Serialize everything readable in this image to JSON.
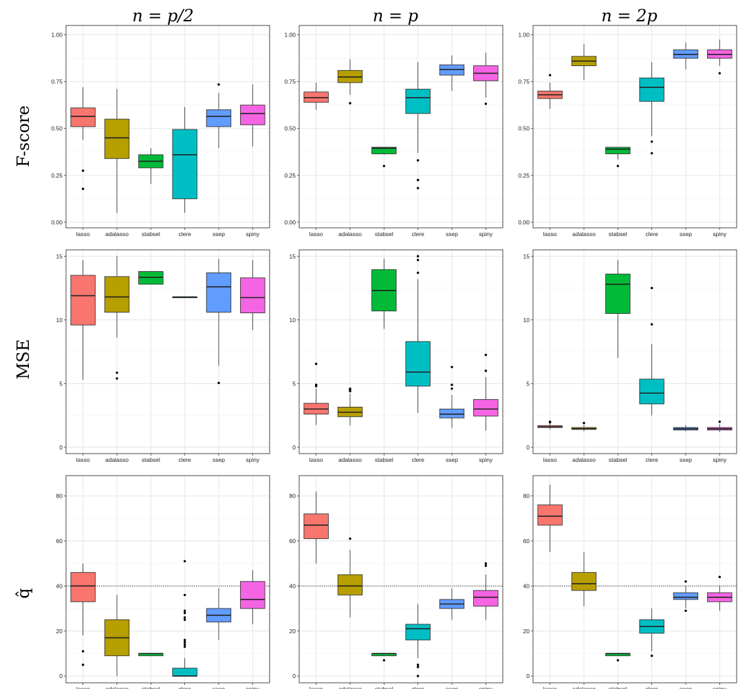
{
  "figure": {
    "col_titles": [
      "n = p/2",
      "n = p",
      "n = 2p"
    ],
    "row_titles": [
      "F-score",
      "MSE",
      "q̂"
    ]
  },
  "chart_data": [
    {
      "type": "box",
      "row_label": "F-score",
      "col_label": "n = p/2",
      "categories": [
        "lasso",
        "adalasso",
        "stabsel",
        "clere",
        "ssep",
        "spiny"
      ],
      "colors": [
        "#F8766D",
        "#B79F00",
        "#00BA38",
        "#00BFC4",
        "#619CFF",
        "#F564E3"
      ],
      "ylim": [
        -0.03,
        1.05
      ],
      "yticks": [
        0.0,
        0.25,
        0.5,
        0.75,
        1.0
      ],
      "ytick_labels": [
        "0.00",
        "0.25",
        "0.50",
        "0.75",
        "1.00"
      ],
      "boxes": [
        {
          "min": 0.44,
          "q1": 0.51,
          "median": 0.565,
          "q3": 0.61,
          "max": 0.72,
          "outliers": [
            0.275,
            0.178
          ]
        },
        {
          "min": 0.05,
          "q1": 0.34,
          "median": 0.45,
          "q3": 0.55,
          "max": 0.71,
          "outliers": []
        },
        {
          "min": 0.205,
          "q1": 0.29,
          "median": 0.325,
          "q3": 0.36,
          "max": 0.395,
          "outliers": []
        },
        {
          "min": 0.05,
          "q1": 0.125,
          "median": 0.36,
          "q3": 0.495,
          "max": 0.615,
          "outliers": []
        },
        {
          "min": 0.395,
          "q1": 0.51,
          "median": 0.565,
          "q3": 0.6,
          "max": 0.69,
          "outliers": [
            0.735
          ]
        },
        {
          "min": 0.405,
          "q1": 0.52,
          "median": 0.58,
          "q3": 0.625,
          "max": 0.735,
          "outliers": []
        }
      ]
    },
    {
      "type": "box",
      "row_label": "F-score",
      "col_label": "n = p",
      "categories": [
        "lasso",
        "adalasso",
        "stabsel",
        "clere",
        "ssep",
        "spiny"
      ],
      "colors": [
        "#F8766D",
        "#B79F00",
        "#00BA38",
        "#00BFC4",
        "#619CFF",
        "#F564E3"
      ],
      "ylim": [
        -0.03,
        1.05
      ],
      "yticks": [
        0.0,
        0.25,
        0.5,
        0.75,
        1.0
      ],
      "ytick_labels": [
        "0.00",
        "0.25",
        "0.50",
        "0.75",
        "1.00"
      ],
      "boxes": [
        {
          "min": 0.6,
          "q1": 0.64,
          "median": 0.665,
          "q3": 0.695,
          "max": 0.745,
          "outliers": []
        },
        {
          "min": 0.68,
          "q1": 0.745,
          "median": 0.775,
          "q3": 0.81,
          "max": 0.87,
          "outliers": [
            0.635
          ]
        },
        {
          "min": 0.36,
          "q1": 0.365,
          "median": 0.395,
          "q3": 0.4,
          "max": 0.4,
          "outliers": [
            0.3
          ]
        },
        {
          "min": 0.37,
          "q1": 0.58,
          "median": 0.665,
          "q3": 0.71,
          "max": 0.855,
          "outliers": [
            0.33,
            0.225,
            0.182
          ]
        },
        {
          "min": 0.7,
          "q1": 0.785,
          "median": 0.815,
          "q3": 0.84,
          "max": 0.89,
          "outliers": []
        },
        {
          "min": 0.665,
          "q1": 0.755,
          "median": 0.795,
          "q3": 0.835,
          "max": 0.905,
          "outliers": [
            0.632
          ]
        }
      ]
    },
    {
      "type": "box",
      "row_label": "F-score",
      "col_label": "n = 2p",
      "categories": [
        "lasso",
        "adalasso",
        "stabsel",
        "clere",
        "ssep",
        "spiny"
      ],
      "colors": [
        "#F8766D",
        "#B79F00",
        "#00BA38",
        "#00BFC4",
        "#619CFF",
        "#F564E3"
      ],
      "ylim": [
        -0.03,
        1.05
      ],
      "yticks": [
        0.0,
        0.25,
        0.5,
        0.75,
        1.0
      ],
      "ytick_labels": [
        "0.00",
        "0.25",
        "0.50",
        "0.75",
        "1.00"
      ],
      "boxes": [
        {
          "min": 0.605,
          "q1": 0.66,
          "median": 0.68,
          "q3": 0.7,
          "max": 0.745,
          "outliers": [
            0.785
          ]
        },
        {
          "min": 0.76,
          "q1": 0.835,
          "median": 0.86,
          "q3": 0.885,
          "max": 0.95,
          "outliers": []
        },
        {
          "min": 0.335,
          "q1": 0.365,
          "median": 0.39,
          "q3": 0.4,
          "max": 0.4,
          "outliers": [
            0.3
          ]
        },
        {
          "min": 0.46,
          "q1": 0.645,
          "median": 0.72,
          "q3": 0.77,
          "max": 0.855,
          "outliers": [
            0.43,
            0.368
          ]
        },
        {
          "min": 0.815,
          "q1": 0.875,
          "median": 0.895,
          "q3": 0.92,
          "max": 0.96,
          "outliers": []
        },
        {
          "min": 0.835,
          "q1": 0.875,
          "median": 0.895,
          "q3": 0.92,
          "max": 0.975,
          "outliers": [
            0.795
          ]
        }
      ]
    },
    {
      "type": "box",
      "row_label": "MSE",
      "col_label": "n = p/2",
      "categories": [
        "lasso",
        "adalasso",
        "stabsel",
        "clere",
        "ssep",
        "spiny"
      ],
      "colors": [
        "#F8766D",
        "#B79F00",
        "#00BA38",
        "#00BFC4",
        "#619CFF",
        "#F564E3"
      ],
      "ylim": [
        -0.5,
        15.5
      ],
      "yticks": [
        0,
        5,
        10,
        15
      ],
      "ytick_labels": [
        "0",
        "5",
        "10",
        "15"
      ],
      "boxes": [
        {
          "min": 5.3,
          "q1": 9.6,
          "median": 11.9,
          "q3": 13.5,
          "max": 14.7,
          "outliers": []
        },
        {
          "min": 8.6,
          "q1": 10.6,
          "median": 11.8,
          "q3": 13.4,
          "max": 15.0,
          "outliers": [
            5.85,
            5.4
          ]
        },
        {
          "min": 12.8,
          "q1": 12.8,
          "median": 13.35,
          "q3": 13.8,
          "max": 13.8,
          "outliers": []
        },
        {
          "min": 11.8,
          "q1": 11.8,
          "median": 11.8,
          "q3": 11.8,
          "max": 11.8,
          "outliers": []
        },
        {
          "min": 6.4,
          "q1": 10.6,
          "median": 12.6,
          "q3": 13.7,
          "max": 14.8,
          "outliers": [
            5.05
          ]
        },
        {
          "min": 9.2,
          "q1": 10.55,
          "median": 11.75,
          "q3": 13.3,
          "max": 14.7,
          "outliers": []
        }
      ]
    },
    {
      "type": "box",
      "row_label": "MSE",
      "col_label": "n = p",
      "categories": [
        "lasso",
        "adalasso",
        "stabsel",
        "clere",
        "ssep",
        "spiny"
      ],
      "colors": [
        "#F8766D",
        "#B79F00",
        "#00BA38",
        "#00BFC4",
        "#619CFF",
        "#F564E3"
      ],
      "ylim": [
        -0.5,
        15.5
      ],
      "yticks": [
        0,
        5,
        10,
        15
      ],
      "ytick_labels": [
        "0",
        "5",
        "10",
        "15"
      ],
      "boxes": [
        {
          "min": 1.75,
          "q1": 2.6,
          "median": 3.0,
          "q3": 3.45,
          "max": 4.6,
          "outliers": [
            6.55,
            4.9,
            4.8
          ]
        },
        {
          "min": 1.7,
          "q1": 2.4,
          "median": 2.75,
          "q3": 3.15,
          "max": 4.2,
          "outliers": [
            4.6,
            4.5,
            4.4
          ]
        },
        {
          "min": 9.3,
          "q1": 10.7,
          "median": 12.3,
          "q3": 13.95,
          "max": 14.8,
          "outliers": []
        },
        {
          "min": 2.7,
          "q1": 4.8,
          "median": 5.9,
          "q3": 8.3,
          "max": 13.2,
          "outliers": [
            15.0,
            14.7,
            13.7
          ]
        },
        {
          "min": 1.5,
          "q1": 2.3,
          "median": 2.6,
          "q3": 3.0,
          "max": 4.1,
          "outliers": [
            6.3,
            4.9,
            4.6
          ]
        },
        {
          "min": 1.3,
          "q1": 2.45,
          "median": 3.0,
          "q3": 3.75,
          "max": 5.5,
          "outliers": [
            7.25,
            6.0
          ]
        }
      ]
    },
    {
      "type": "box",
      "row_label": "MSE",
      "col_label": "n = 2p",
      "categories": [
        "lasso",
        "adalasso",
        "stabsel",
        "clere",
        "ssep",
        "spiny"
      ],
      "colors": [
        "#F8766D",
        "#B79F00",
        "#00BA38",
        "#00BFC4",
        "#619CFF",
        "#F564E3"
      ],
      "ylim": [
        -0.5,
        15.5
      ],
      "yticks": [
        0,
        5,
        10,
        15
      ],
      "ytick_labels": [
        "0",
        "5",
        "10",
        "15"
      ],
      "boxes": [
        {
          "min": 1.4,
          "q1": 1.55,
          "median": 1.6,
          "q3": 1.7,
          "max": 1.85,
          "outliers": [
            2.0,
            1.95
          ]
        },
        {
          "min": 1.25,
          "q1": 1.4,
          "median": 1.45,
          "q3": 1.55,
          "max": 1.75,
          "outliers": [
            1.9
          ]
        },
        {
          "min": 7.0,
          "q1": 10.5,
          "median": 12.8,
          "q3": 13.6,
          "max": 14.7,
          "outliers": []
        },
        {
          "min": 2.5,
          "q1": 3.4,
          "median": 4.25,
          "q3": 5.35,
          "max": 8.1,
          "outliers": [
            12.5,
            9.65
          ]
        },
        {
          "min": 1.25,
          "q1": 1.35,
          "median": 1.45,
          "q3": 1.55,
          "max": 1.75,
          "outliers": []
        },
        {
          "min": 1.2,
          "q1": 1.35,
          "median": 1.45,
          "q3": 1.55,
          "max": 1.8,
          "outliers": [
            2.0
          ]
        }
      ]
    },
    {
      "type": "box",
      "row_label": "q̂",
      "col_label": "n = p/2",
      "categories": [
        "lasso",
        "adalasso",
        "stabsel",
        "clere",
        "ssep",
        "spiny"
      ],
      "colors": [
        "#F8766D",
        "#B79F00",
        "#00BA38",
        "#00BFC4",
        "#619CFF",
        "#F564E3"
      ],
      "ylim": [
        -3,
        89
      ],
      "yticks": [
        0,
        20,
        40,
        60,
        80
      ],
      "ytick_labels": [
        "0",
        "20",
        "40",
        "60",
        "80"
      ],
      "reference_line": 40,
      "boxes": [
        {
          "min": 18,
          "q1": 33,
          "median": 40,
          "q3": 46,
          "max": 50,
          "outliers": [
            11,
            5
          ]
        },
        {
          "min": 0,
          "q1": 9,
          "median": 17,
          "q3": 25,
          "max": 36,
          "outliers": []
        },
        {
          "min": 9,
          "q1": 9,
          "median": 10,
          "q3": 10,
          "max": 10,
          "outliers": []
        },
        {
          "min": 0,
          "q1": 0,
          "median": 0,
          "q3": 3.5,
          "max": 8,
          "outliers": [
            51,
            36,
            29,
            28,
            26,
            25,
            16,
            15,
            14,
            13
          ]
        },
        {
          "min": 16,
          "q1": 24,
          "median": 27,
          "q3": 30,
          "max": 39,
          "outliers": []
        },
        {
          "min": 23,
          "q1": 30,
          "median": 34,
          "q3": 42,
          "max": 47,
          "outliers": []
        }
      ]
    },
    {
      "type": "box",
      "row_label": "q̂",
      "col_label": "n = p",
      "categories": [
        "lasso",
        "adalasso",
        "stabsel",
        "clere",
        "ssep",
        "spiny"
      ],
      "colors": [
        "#F8766D",
        "#B79F00",
        "#00BA38",
        "#00BFC4",
        "#619CFF",
        "#F564E3"
      ],
      "ylim": [
        -3,
        89
      ],
      "yticks": [
        0,
        20,
        40,
        60,
        80
      ],
      "ytick_labels": [
        "0",
        "20",
        "40",
        "60",
        "80"
      ],
      "reference_line": 40,
      "boxes": [
        {
          "min": 50,
          "q1": 61,
          "median": 67,
          "q3": 72,
          "max": 82,
          "outliers": []
        },
        {
          "min": 26,
          "q1": 36,
          "median": 40,
          "q3": 45,
          "max": 56,
          "outliers": [
            61
          ]
        },
        {
          "min": 9,
          "q1": 9,
          "median": 10,
          "q3": 10,
          "max": 10,
          "outliers": [
            7
          ]
        },
        {
          "min": 8,
          "q1": 16,
          "median": 21,
          "q3": 23,
          "max": 32,
          "outliers": [
            5,
            4,
            0
          ]
        },
        {
          "min": 25,
          "q1": 30,
          "median": 32,
          "q3": 34,
          "max": 39,
          "outliers": []
        },
        {
          "min": 25,
          "q1": 31,
          "median": 35,
          "q3": 38,
          "max": 45,
          "outliers": [
            50,
            49
          ]
        }
      ]
    },
    {
      "type": "box",
      "row_label": "q̂",
      "col_label": "n = 2p",
      "categories": [
        "lasso",
        "adalasso",
        "stabsel",
        "clere",
        "ssep",
        "spiny"
      ],
      "colors": [
        "#F8766D",
        "#B79F00",
        "#00BA38",
        "#00BFC4",
        "#619CFF",
        "#F564E3"
      ],
      "ylim": [
        -3,
        89
      ],
      "yticks": [
        0,
        20,
        40,
        60,
        80
      ],
      "ytick_labels": [
        "0",
        "20",
        "40",
        "60",
        "80"
      ],
      "reference_line": 40,
      "boxes": [
        {
          "min": 55,
          "q1": 67,
          "median": 71,
          "q3": 76,
          "max": 85,
          "outliers": []
        },
        {
          "min": 31,
          "q1": 38,
          "median": 41,
          "q3": 46,
          "max": 55,
          "outliers": []
        },
        {
          "min": 9,
          "q1": 9,
          "median": 10,
          "q3": 10,
          "max": 10,
          "outliers": [
            7
          ]
        },
        {
          "min": 11,
          "q1": 19,
          "median": 22,
          "q3": 25,
          "max": 30,
          "outliers": [
            9
          ]
        },
        {
          "min": 30,
          "q1": 34,
          "median": 35,
          "q3": 37,
          "max": 40,
          "outliers": [
            42,
            29
          ]
        },
        {
          "min": 29,
          "q1": 33,
          "median": 35,
          "q3": 37,
          "max": 40,
          "outliers": [
            44
          ]
        }
      ]
    }
  ]
}
